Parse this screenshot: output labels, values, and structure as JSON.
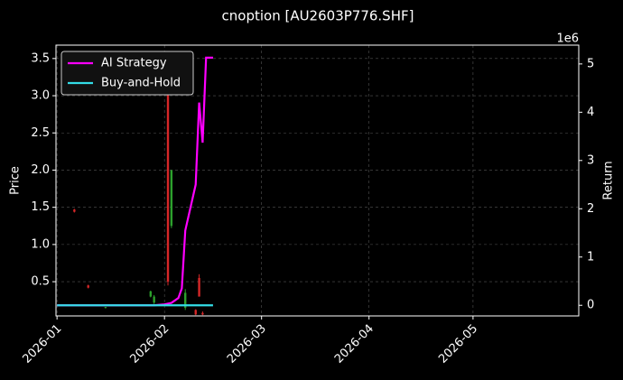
{
  "chart_data": {
    "type": "candlestick",
    "title": "cnoption [AU2603P776.SHF]",
    "ylabel": "Price",
    "y2label": "Return",
    "y2_offset_label": "1e6",
    "x": [
      5,
      9,
      14,
      27,
      28,
      32,
      33,
      37,
      40,
      41,
      42
    ],
    "open": [
      1.47,
      0.45,
      0.15,
      0.3,
      0.22,
      3.2,
      1.25,
      0.15,
      0.12,
      0.55,
      0.08
    ],
    "high": [
      1.48,
      0.46,
      0.16,
      0.38,
      0.32,
      3.25,
      2.0,
      0.4,
      0.13,
      0.6,
      0.1
    ],
    "low": [
      1.43,
      0.41,
      0.14,
      0.29,
      0.2,
      0.45,
      1.22,
      0.12,
      0.05,
      0.3,
      0.05
    ],
    "close": [
      1.44,
      0.42,
      0.16,
      0.37,
      0.3,
      0.5,
      2.0,
      0.35,
      0.06,
      0.3,
      0.06
    ],
    "up_color": "#2ca02c",
    "down_color": "#d62728",
    "series": [
      {
        "name": "AI Strategy",
        "color": "#ff00ff",
        "axis": "y2",
        "x": [
          0,
          5,
          10,
          15,
          20,
          25,
          28,
          31,
          33,
          35,
          36,
          37,
          40,
          41,
          42,
          43,
          45
        ],
        "values": [
          0,
          0,
          0,
          0,
          0,
          0,
          0,
          0.02,
          0.05,
          0.15,
          0.35,
          1.55,
          2.5,
          4.2,
          3.37,
          5.13,
          5.13
        ]
      },
      {
        "name": "Buy-and-Hold",
        "color": "#33dde6",
        "axis": "y2",
        "x": [
          0,
          10,
          20,
          30,
          40,
          45
        ],
        "values": [
          0,
          0,
          0,
          0,
          0,
          0
        ]
      }
    ],
    "xlim": [
      -0.3,
      150.5
    ],
    "xticks": [
      {
        "value": 0,
        "label": "2026-01"
      },
      {
        "value": 31,
        "label": "2026-02"
      },
      {
        "value": 59,
        "label": "2026-03"
      },
      {
        "value": 90,
        "label": "2026-04"
      },
      {
        "value": 120,
        "label": "2026-05"
      }
    ],
    "ylim": [
      0.04,
      3.68
    ],
    "yticks": [
      0.5,
      {
        "value": 1,
        "label": "1.0"
      },
      1.5,
      {
        "value": 2,
        "label": "2.0"
      },
      2.5,
      {
        "value": 3,
        "label": "3.0"
      },
      3.5
    ],
    "y2lim": [
      -0.22,
      5.39
    ],
    "y2ticks": [
      0,
      1,
      2,
      3,
      4,
      5
    ],
    "grid": true,
    "legend": "upper left"
  }
}
